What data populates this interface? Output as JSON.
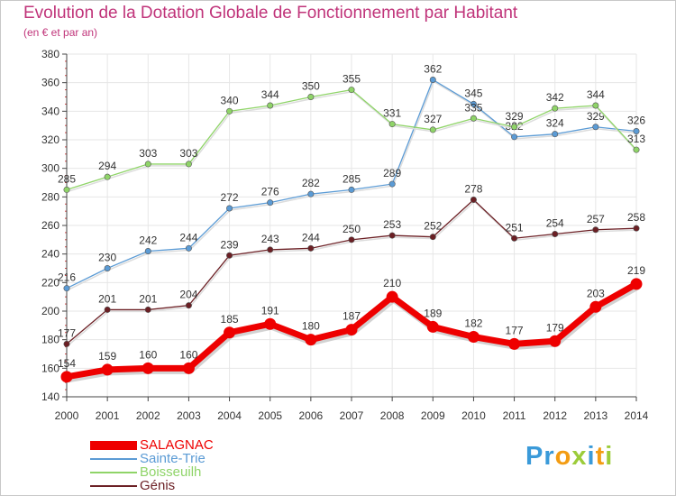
{
  "title": "Evolution de la Dotation Globale de Fonctionnement par Habitant",
  "subtitle": "(en € et par an)",
  "brand": {
    "letters": [
      {
        "char": "P",
        "color": "#3a9ad9"
      },
      {
        "char": "r",
        "color": "#3a9ad9"
      },
      {
        "char": "o",
        "color": "#f39c12"
      },
      {
        "char": "x",
        "color": "#9ccc3a"
      },
      {
        "char": "i",
        "color": "#3a9ad9"
      },
      {
        "char": "t",
        "color": "#f39c12"
      },
      {
        "char": "i",
        "color": "#9ccc3a"
      }
    ]
  },
  "chart_data": {
    "type": "line",
    "title": "Evolution de la Dotation Globale de Fonctionnement par Habitant",
    "ylabel": "(en € et par an)",
    "x": [
      "2000",
      "2001",
      "2002",
      "2003",
      "2004",
      "2005",
      "2006",
      "2007",
      "2008",
      "2009",
      "2010",
      "2011",
      "2012",
      "2013",
      "2014"
    ],
    "ylim": [
      140,
      380
    ],
    "yticks": [
      140,
      160,
      180,
      200,
      220,
      240,
      260,
      280,
      300,
      320,
      340,
      360,
      380
    ],
    "series": [
      {
        "name": "SALAGNAC",
        "color": "#ee0000",
        "thick": true,
        "values": [
          154,
          159,
          160,
          160,
          185,
          191,
          180,
          187,
          210,
          189,
          182,
          177,
          179,
          203,
          219
        ]
      },
      {
        "name": "Sainte-Trie",
        "color": "#5b9bd5",
        "thick": false,
        "values": [
          216,
          230,
          242,
          244,
          272,
          276,
          282,
          285,
          289,
          362,
          345,
          322,
          324,
          329,
          326
        ]
      },
      {
        "name": "Boisseuilh",
        "color": "#8fd468",
        "thick": false,
        "values": [
          285,
          294,
          303,
          303,
          340,
          344,
          350,
          355,
          331,
          327,
          335,
          329,
          342,
          344,
          313
        ]
      },
      {
        "name": "Génis",
        "color": "#6b1f24",
        "thick": false,
        "values": [
          177,
          201,
          201,
          204,
          239,
          243,
          244,
          250,
          253,
          252,
          278,
          251,
          254,
          257,
          258
        ]
      }
    ]
  },
  "legend": [
    {
      "label": "SALAGNAC",
      "color": "#ee0000"
    },
    {
      "label": "Sainte-Trie",
      "color": "#5b9bd5"
    },
    {
      "label": "Boisseuilh",
      "color": "#8fd468"
    },
    {
      "label": "Génis",
      "color": "#6b1f24"
    }
  ]
}
